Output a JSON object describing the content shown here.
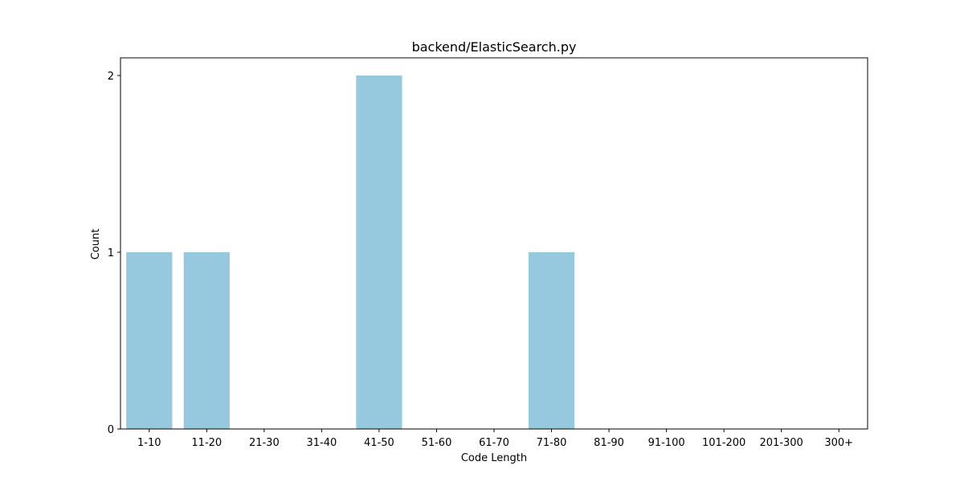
{
  "chart_data": {
    "type": "bar",
    "title": "backend/ElasticSearch.py",
    "xlabel": "Code Length",
    "ylabel": "Count",
    "categories": [
      "1-10",
      "11-20",
      "21-30",
      "31-40",
      "41-50",
      "51-60",
      "61-70",
      "71-80",
      "81-90",
      "91-100",
      "101-200",
      "201-300",
      "300+"
    ],
    "values": [
      1,
      1,
      0,
      0,
      2,
      0,
      0,
      1,
      0,
      0,
      0,
      0,
      0
    ],
    "ylim": [
      0,
      2.1
    ],
    "yticks": [
      0,
      1,
      2
    ],
    "bar_color": "#96c9de",
    "grid": false,
    "legend": "none"
  }
}
